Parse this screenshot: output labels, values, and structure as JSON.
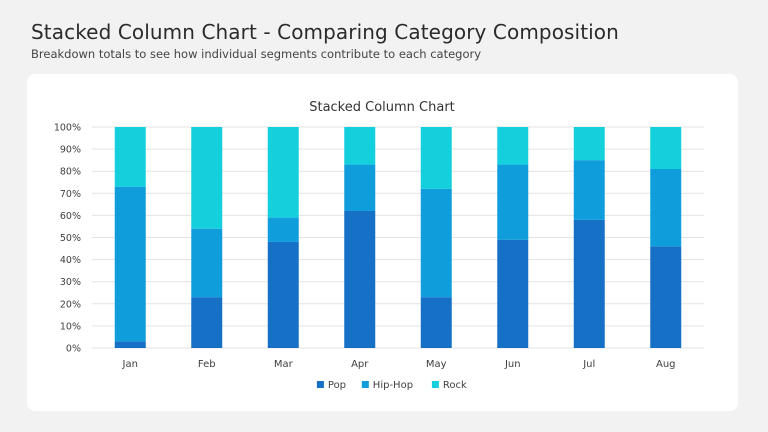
{
  "header": {
    "title": "Stacked Column Chart - Comparing Category Composition",
    "subtitle": "Breakdown totals to see how individual segments contribute to each category"
  },
  "colors": {
    "Pop": "#1570c6",
    "Hip-Hop": "#109ddc",
    "Rock": "#14d0dd",
    "grid": "#e3e3e3",
    "axis_text": "#404040"
  },
  "chart_data": {
    "type": "bar",
    "stacked": true,
    "title": "Stacked Column Chart",
    "xlabel": "",
    "ylabel": "",
    "ylim": [
      0,
      100
    ],
    "y_ticks": [
      "0%",
      "10%",
      "20%",
      "30%",
      "40%",
      "50%",
      "60%",
      "70%",
      "80%",
      "90%",
      "100%"
    ],
    "categories": [
      "Jan",
      "Feb",
      "Mar",
      "Apr",
      "May",
      "Jun",
      "Jul",
      "Aug"
    ],
    "series": [
      {
        "name": "Pop",
        "values": [
          3,
          23,
          48,
          62,
          23,
          49,
          58,
          46
        ]
      },
      {
        "name": "Hip-Hop",
        "values": [
          70,
          31,
          11,
          21,
          49,
          34,
          27,
          35
        ]
      },
      {
        "name": "Rock",
        "values": [
          27,
          46,
          41,
          17,
          28,
          17,
          15,
          19
        ]
      }
    ],
    "legend_position": "bottom",
    "grid": true
  }
}
